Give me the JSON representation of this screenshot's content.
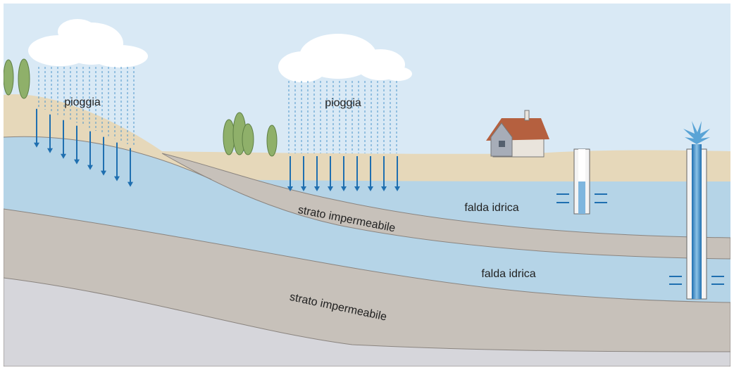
{
  "rain": [
    "pioggia",
    "pioggia"
  ],
  "aquifers": [
    "falda idrica",
    "falda idrica"
  ],
  "impermeable_layers": [
    "strato impermeabile",
    "strato impermeabile"
  ]
}
